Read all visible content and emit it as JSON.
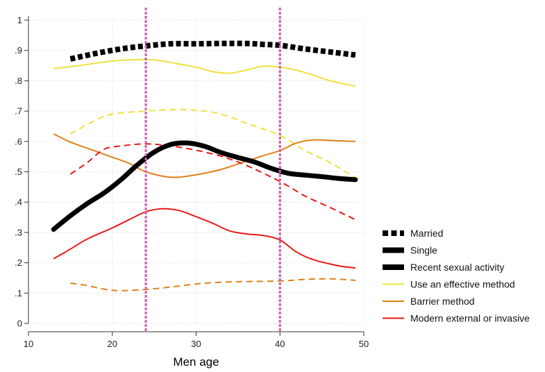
{
  "chart_data": {
    "type": "line",
    "title": "",
    "xlabel": "Men age",
    "ylabel": "",
    "xlim": [
      10,
      50
    ],
    "ylim": [
      0,
      1
    ],
    "x_ticks": [
      "10",
      "20",
      "30",
      "40",
      "50"
    ],
    "y_ticks": [
      "0",
      ".1",
      ".2",
      ".3",
      ".4",
      ".5",
      ".6",
      ".7",
      ".8",
      ".9",
      "1"
    ],
    "grid": true,
    "legend_position": "right",
    "reference_lines_x": [
      24,
      40
    ],
    "series": [
      {
        "name": "Use an effective method",
        "group": "Married",
        "color": "#f0e040",
        "style": "solid",
        "x": [
          13,
          16,
          20,
          24,
          26,
          28,
          30,
          32,
          34,
          36,
          38,
          40,
          42,
          44,
          46,
          49
        ],
        "y": [
          0.84,
          0.85,
          0.865,
          0.87,
          0.865,
          0.855,
          0.845,
          0.83,
          0.825,
          0.835,
          0.848,
          0.845,
          0.835,
          0.818,
          0.8,
          0.782
        ]
      },
      {
        "name": "Use an effective method",
        "group": "Single",
        "color": "#f0e040",
        "style": "dashed",
        "x": [
          15,
          18,
          20,
          24,
          27,
          30,
          33,
          36,
          40,
          43,
          46,
          49
        ],
        "y": [
          0.625,
          0.67,
          0.69,
          0.7,
          0.705,
          0.703,
          0.69,
          0.66,
          0.62,
          0.57,
          0.53,
          0.48
        ]
      },
      {
        "name": "Barrier method",
        "group": "Married",
        "color": "#e08018",
        "style": "solid",
        "x": [
          13,
          15,
          18,
          20,
          22,
          24,
          27,
          30,
          33,
          36,
          38,
          40,
          42,
          44,
          47,
          49
        ],
        "y": [
          0.625,
          0.598,
          0.568,
          0.548,
          0.528,
          0.5,
          0.482,
          0.49,
          0.508,
          0.535,
          0.553,
          0.57,
          0.595,
          0.605,
          0.602,
          0.6
        ]
      },
      {
        "name": "Barrier method",
        "group": "Single",
        "color": "#e08018",
        "style": "dashed",
        "x": [
          15,
          17,
          19,
          21,
          24,
          27,
          30,
          33,
          36,
          40,
          43,
          46,
          49
        ],
        "y": [
          0.133,
          0.125,
          0.113,
          0.108,
          0.112,
          0.12,
          0.13,
          0.136,
          0.138,
          0.14,
          0.145,
          0.147,
          0.142
        ]
      },
      {
        "name": "Modern external or invasive",
        "group": "Married",
        "color": "#e81818",
        "style": "solid",
        "x": [
          13,
          15,
          17,
          20,
          22,
          24,
          26,
          28,
          30,
          32,
          34,
          36,
          38,
          40,
          42,
          44,
          47,
          49
        ],
        "y": [
          0.213,
          0.245,
          0.278,
          0.315,
          0.342,
          0.368,
          0.378,
          0.372,
          0.352,
          0.33,
          0.305,
          0.295,
          0.29,
          0.275,
          0.235,
          0.21,
          0.19,
          0.183
        ]
      },
      {
        "name": "Modern external or invasive",
        "group": "Single",
        "color": "#e81818",
        "style": "dashed",
        "x": [
          15,
          17,
          19,
          21,
          24,
          27,
          30,
          33,
          36,
          40,
          43,
          46,
          49
        ],
        "y": [
          0.492,
          0.53,
          0.574,
          0.585,
          0.592,
          0.585,
          0.571,
          0.551,
          0.521,
          0.468,
          0.42,
          0.382,
          0.342
        ]
      },
      {
        "name": "Recent sexual activity",
        "group": "Married",
        "color": "#000000",
        "style": "married",
        "x": [
          15,
          18,
          21,
          24,
          27,
          30,
          33,
          36,
          38,
          40,
          43,
          46,
          49
        ],
        "y": [
          0.872,
          0.89,
          0.905,
          0.915,
          0.922,
          0.922,
          0.923,
          0.923,
          0.92,
          0.917,
          0.905,
          0.895,
          0.885
        ]
      },
      {
        "name": "Recent sexual activity",
        "group": "Single",
        "color": "#000000",
        "style": "single",
        "x": [
          13,
          15,
          17,
          19,
          21,
          23,
          25,
          27,
          29,
          31,
          33,
          35,
          37,
          39,
          41,
          43,
          45,
          47,
          49
        ],
        "y": [
          0.31,
          0.355,
          0.395,
          0.43,
          0.473,
          0.523,
          0.565,
          0.59,
          0.595,
          0.584,
          0.563,
          0.547,
          0.532,
          0.511,
          0.495,
          0.489,
          0.484,
          0.478,
          0.474
        ]
      }
    ],
    "legend": [
      {
        "label": "Married",
        "style": "married",
        "color": "#000000"
      },
      {
        "label": "Single",
        "style": "single",
        "color": "#000000"
      },
      {
        "label": "Recent sexual activity",
        "style": "single",
        "color": "#000000"
      },
      {
        "label": "Use an effective method",
        "style": "solid",
        "color": "#f0e040"
      },
      {
        "label": "Barrier method",
        "style": "solid",
        "color": "#e08018"
      },
      {
        "label": "Modern external or invasive",
        "style": "solid",
        "color": "#e81818"
      }
    ]
  }
}
